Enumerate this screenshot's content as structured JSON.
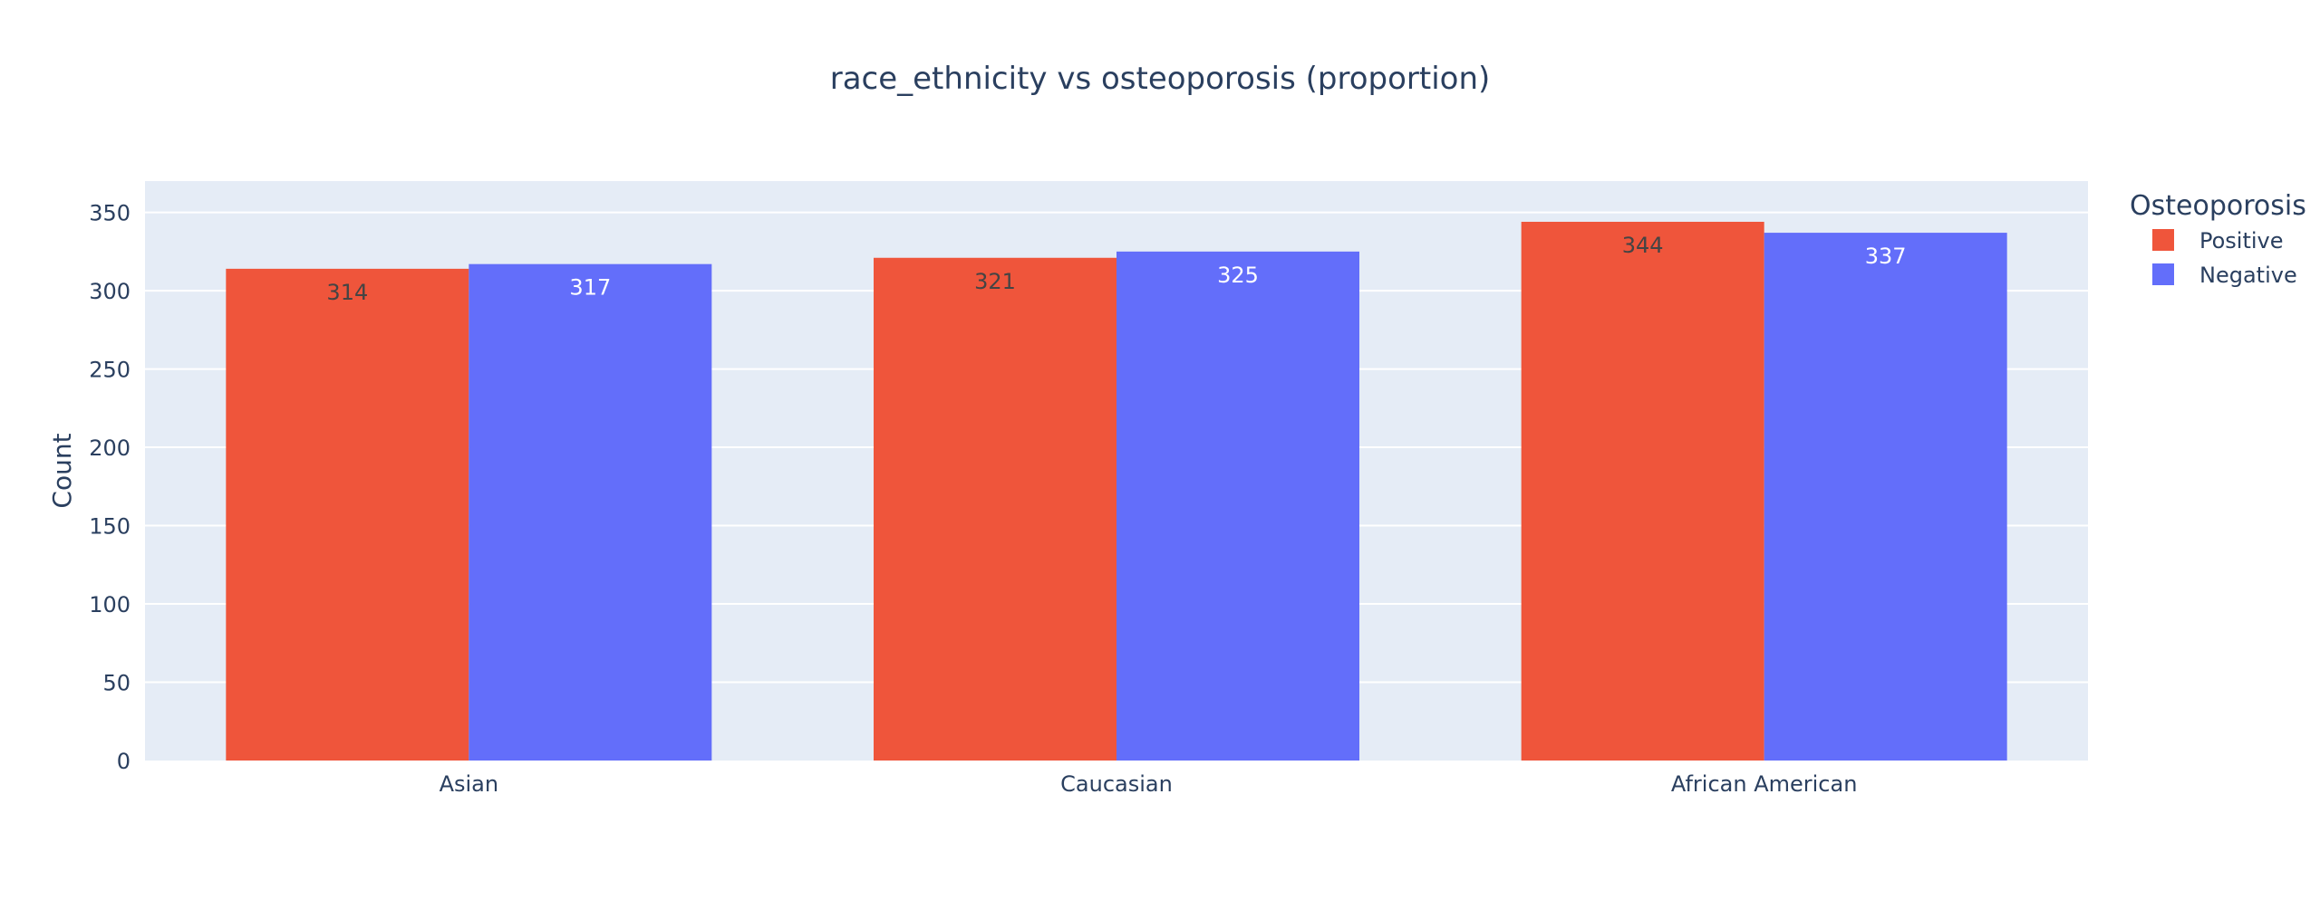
{
  "chart_data": {
    "type": "bar",
    "title": "race_ethnicity vs osteoporosis (proportion)",
    "xlabel": "",
    "ylabel": "Count",
    "categories": [
      "Asian",
      "Caucasian",
      "African American"
    ],
    "series": [
      {
        "name": "Positive",
        "color": "#EF553B",
        "values": [
          314,
          321,
          344
        ],
        "label_color": "#444444"
      },
      {
        "name": "Negative",
        "color": "#636EFA",
        "values": [
          317,
          325,
          337
        ],
        "label_color": "#ffffff"
      }
    ],
    "ylim": [
      0,
      350
    ],
    "yticks": [
      0,
      50,
      100,
      150,
      200,
      250,
      300,
      350
    ],
    "grid": true,
    "legend": {
      "title": "Osteoporosis",
      "position": "top-right"
    },
    "colors": {
      "plot_bg": "#E5ECF6",
      "grid": "#ffffff",
      "text": "#2a3f5f"
    }
  }
}
